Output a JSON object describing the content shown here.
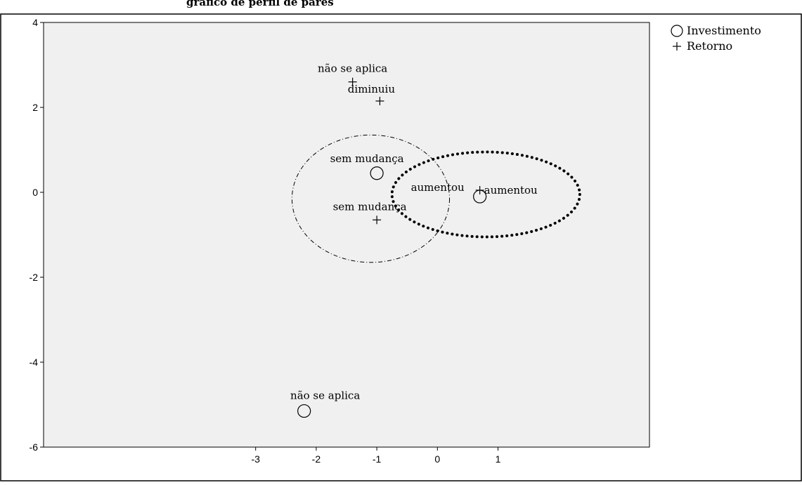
{
  "title": "gráfico de perfil de pares",
  "chart_data": {
    "type": "scatter",
    "title": "",
    "xlabel": "",
    "ylabel": "",
    "xlim": [
      -6.5,
      3.5
    ],
    "ylim": [
      -6,
      4
    ],
    "x_ticks": [
      -3,
      -2,
      -1,
      0,
      1
    ],
    "y_ticks": [
      4,
      2,
      0,
      -2,
      -4,
      -6
    ],
    "grid": false,
    "legend_position": "top-right, outside plot",
    "series": [
      {
        "name": "Investimento",
        "marker": "circle",
        "points": [
          {
            "label": "sem mudança",
            "x": -1.0,
            "y": 0.45
          },
          {
            "label": "aumentou",
            "x": 0.7,
            "y": -0.1
          },
          {
            "label": "não se aplica",
            "x": -2.2,
            "y": -5.15
          }
        ]
      },
      {
        "name": "Retorno",
        "marker": "plus",
        "points": [
          {
            "label": "não se aplica",
            "x": -1.4,
            "y": 2.6
          },
          {
            "label": "diminuiu",
            "x": -0.95,
            "y": 2.15
          },
          {
            "label": "aumentou",
            "x": 0.7,
            "y": 0.05
          },
          {
            "label": "sem mudança",
            "x": -1.0,
            "y": -0.65
          }
        ]
      }
    ],
    "annotations": [
      {
        "shape": "ellipse",
        "style": "dash-dot",
        "cx": -1.1,
        "cy": -0.15,
        "rx": 1.3,
        "ry": 1.5
      },
      {
        "shape": "ellipse",
        "style": "dotted",
        "cx": 0.8,
        "cy": -0.05,
        "rx": 1.55,
        "ry": 1.0
      }
    ],
    "colors": {
      "plot_bg": "#f0f0f0",
      "ink": "#000000"
    }
  }
}
